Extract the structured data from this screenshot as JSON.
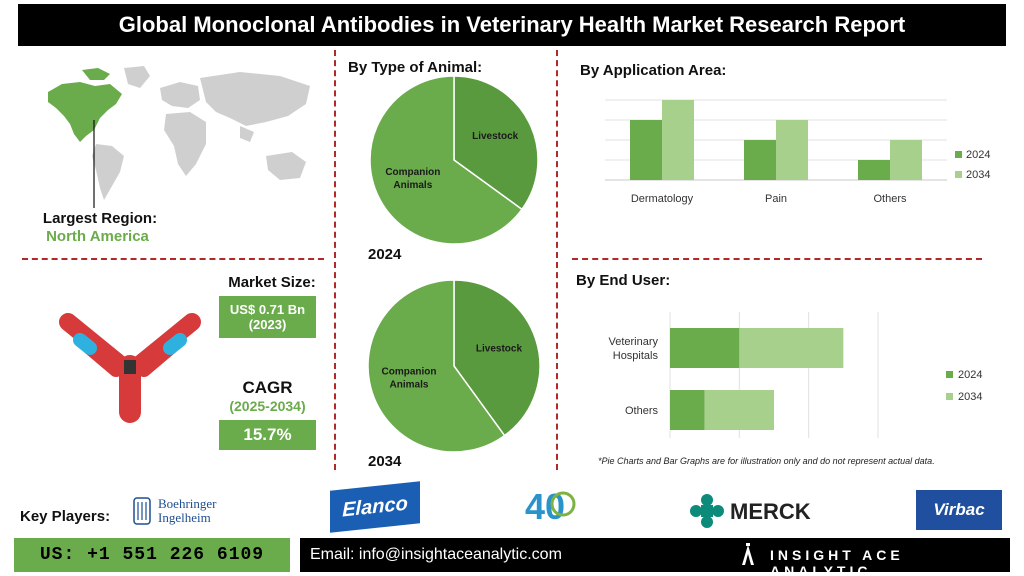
{
  "title": "Global Monoclonal Antibodies in Veterinary Health Market Research Report",
  "region": {
    "label": "Largest Region:",
    "value": "North America"
  },
  "market_size": {
    "label": "Market Size:",
    "value_line1": "US$ 0.71 Bn",
    "value_line2": "(2023)"
  },
  "cagr": {
    "label": "CAGR",
    "period": "(2025-2034)",
    "value": "15.7%"
  },
  "animal": {
    "heading": "By Type of Animal:",
    "year_2024": "2024",
    "year_2034": "2034"
  },
  "application": {
    "heading": "By Application Area:"
  },
  "end_user": {
    "heading": "By End User:"
  },
  "footnote": "*Pie Charts and Bar Graphs are for illustration only and do not represent actual data.",
  "key_players": {
    "label": "Key Players:",
    "boehringer_line1": "Boehringer",
    "boehringer_line2": "Ingelheim",
    "elanco": "Elanco",
    "zoetis_number": "40",
    "merck": "MERCK",
    "virbac": "Virbac"
  },
  "footer": {
    "phone": "US: +1 551 226 6109",
    "email": "Email: info@insightaceanalytic.com",
    "brand": "INSIGHT ACE ANALYTIC"
  },
  "colors": {
    "dark_green": "#5a9a3e",
    "mid_green": "#6aab4b",
    "light_green": "#a8d08d",
    "divider_red": "#b02a2a"
  },
  "chart_data": [
    {
      "type": "pie",
      "title": "2024",
      "labels": [
        "Livestock",
        "Companion Animals"
      ],
      "values": [
        35,
        65
      ]
    },
    {
      "type": "pie",
      "title": "2034",
      "labels": [
        "Livestock",
        "Companion Animals"
      ],
      "values": [
        40,
        60
      ]
    },
    {
      "type": "bar",
      "categories": [
        "Dermatology",
        "Pain",
        "Others"
      ],
      "series": [
        {
          "name": "2024",
          "values": [
            3,
            2,
            1
          ]
        },
        {
          "name": "2034",
          "values": [
            4,
            3,
            2
          ]
        }
      ],
      "ylim": [
        0,
        4.5
      ],
      "legend": "right"
    },
    {
      "type": "bar",
      "orientation": "horizontal-stacked",
      "categories": [
        "Veterinary Hospitals",
        "Others"
      ],
      "series": [
        {
          "name": "2024",
          "values": [
            1,
            0.5
          ]
        },
        {
          "name": "2034",
          "values": [
            1.5,
            1
          ]
        }
      ],
      "xlim": [
        0,
        3
      ],
      "legend": "right"
    }
  ]
}
